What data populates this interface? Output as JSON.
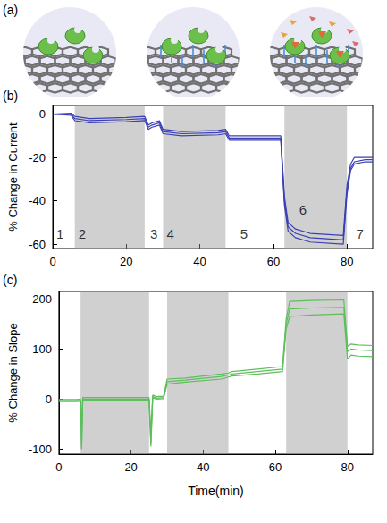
{
  "panel_a": {
    "label": "(a)"
  },
  "chart_data": [
    {
      "type": "line",
      "label": "(b)",
      "ylabel": "% Change in Current",
      "x": [
        0,
        5,
        6,
        10,
        20,
        25,
        25.5,
        26,
        27,
        29,
        30,
        35,
        45,
        47,
        48,
        55,
        62,
        63,
        64,
        66,
        70,
        79,
        80,
        81,
        82,
        85,
        87
      ],
      "series": [
        {
          "color": "#3b3fb5",
          "values": [
            0,
            0,
            -2,
            -3,
            -2.5,
            -2,
            -4,
            -6,
            -5,
            -4,
            -8,
            -9,
            -8.5,
            -8,
            -11,
            -11,
            -11,
            -40,
            -52,
            -55,
            -57,
            -58,
            -35,
            -25,
            -22,
            -21,
            -21
          ]
        },
        {
          "color": "#3b3fb5",
          "values": [
            0,
            -0.5,
            -3,
            -4,
            -3.5,
            -3,
            -5,
            -7,
            -6,
            -5,
            -9,
            -10,
            -9.5,
            -9,
            -12,
            -12,
            -12,
            -42,
            -54,
            -57,
            -59,
            -60,
            -37,
            -26,
            -23,
            -22,
            -22
          ]
        },
        {
          "color": "#3b3fb5",
          "values": [
            0,
            0.5,
            -1,
            -2,
            -1.5,
            -1,
            -3,
            -5,
            -4,
            -3,
            -7,
            -8,
            -7.5,
            -7,
            -10,
            -10,
            -10,
            -38,
            -50,
            -53,
            -55,
            -56,
            -33,
            -23,
            -20,
            -20,
            -20
          ]
        }
      ],
      "shaded": [
        [
          6,
          25
        ],
        [
          30,
          47
        ],
        [
          63,
          80
        ]
      ],
      "annotations": [
        {
          "text": "1",
          "x": 2,
          "y": -55
        },
        {
          "text": "2",
          "x": 8,
          "y": -55
        },
        {
          "text": "3",
          "x": 27.5,
          "y": -55
        },
        {
          "text": "4",
          "x": 32,
          "y": -55
        },
        {
          "text": "5",
          "x": 52,
          "y": -55
        },
        {
          "text": "6",
          "x": 68,
          "y": -44
        },
        {
          "text": "7",
          "x": 83.5,
          "y": -55
        }
      ],
      "xlim": [
        0,
        87
      ],
      "xticks": [
        0,
        20,
        40,
        60,
        80
      ],
      "ylim": [
        -62,
        4
      ],
      "yticks": [
        -60,
        -40,
        -20,
        0
      ],
      "grid": false
    },
    {
      "type": "line",
      "label": "(c)",
      "ylabel": "% Change in Slope",
      "xlabel": "Time(min)",
      "x": [
        0,
        5,
        6,
        6.3,
        6.6,
        10,
        20,
        25,
        25.5,
        26,
        27,
        29,
        30,
        35,
        45,
        47,
        48,
        55,
        62,
        63,
        64,
        70,
        79,
        80,
        81,
        83,
        87
      ],
      "series": [
        {
          "color": "#5cbf5c",
          "values": [
            -3,
            -3,
            -2,
            -95,
            0,
            0,
            0,
            0,
            -90,
            5,
            2,
            3,
            35,
            38,
            45,
            48,
            50,
            55,
            60,
            150,
            180,
            182,
            183,
            95,
            100,
            98,
            97
          ]
        },
        {
          "color": "#5cbf5c",
          "values": [
            -5,
            -5,
            -4,
            -100,
            -2,
            -2,
            -2,
            -2,
            -95,
            3,
            0,
            1,
            30,
            34,
            40,
            44,
            46,
            50,
            55,
            140,
            165,
            168,
            170,
            80,
            88,
            86,
            85
          ]
        },
        {
          "color": "#5cbf5c",
          "values": [
            -1,
            -1,
            0,
            -60,
            3,
            3,
            3,
            3,
            -70,
            8,
            5,
            6,
            40,
            42,
            50,
            52,
            55,
            60,
            65,
            160,
            195,
            197,
            198,
            105,
            110,
            108,
            107
          ]
        }
      ],
      "shaded": [
        [
          6,
          25
        ],
        [
          30,
          47
        ],
        [
          63,
          80
        ]
      ],
      "xlim": [
        0,
        87
      ],
      "xticks": [
        0,
        20,
        40,
        60,
        80
      ],
      "ylim": [
        -110,
        215
      ],
      "yticks": [
        -100,
        0,
        100,
        200
      ],
      "grid": false
    }
  ]
}
